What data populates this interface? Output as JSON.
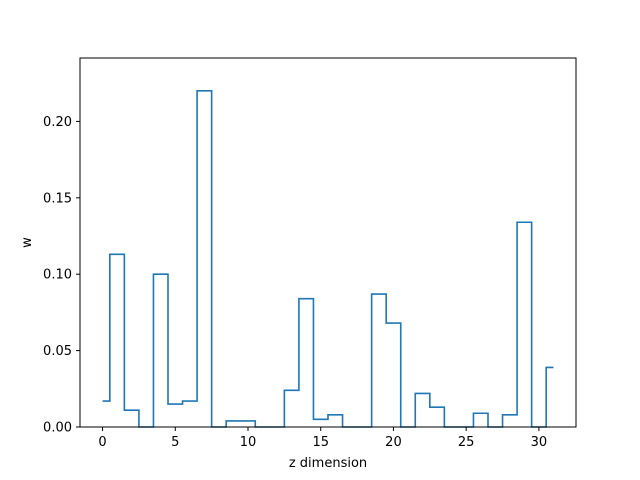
{
  "chart_data": {
    "type": "line",
    "style": "step",
    "title": "",
    "xlabel": "z dimension",
    "ylabel": "w",
    "xlim": [
      -1.55,
      32.55
    ],
    "ylim": [
      0,
      0.2415
    ],
    "xticks": [
      0,
      5,
      10,
      15,
      20,
      25,
      30
    ],
    "yticks": [
      0.0,
      0.05,
      0.1,
      0.15,
      0.2
    ],
    "ytick_labels": [
      "0.00",
      "0.05",
      "0.10",
      "0.15",
      "0.20"
    ],
    "grid": false,
    "line_color": "#1f77b4",
    "series": [
      {
        "x": [
          0,
          1,
          2,
          3,
          4,
          5,
          6,
          7,
          8,
          9,
          10,
          11,
          12,
          13,
          14,
          15,
          16,
          17,
          18,
          19,
          20,
          21,
          22,
          23,
          24,
          25,
          26,
          27,
          28,
          29,
          30,
          31
        ],
        "values": [
          0.017,
          0.113,
          0.011,
          0.0,
          0.1,
          0.015,
          0.017,
          0.22,
          0.0,
          0.004,
          0.004,
          0.0,
          0.0,
          0.024,
          0.084,
          0.005,
          0.008,
          0.0,
          0.0,
          0.087,
          0.068,
          0.0,
          0.022,
          0.013,
          0.0,
          0.0,
          0.009,
          0.0,
          0.008,
          0.134,
          0.0,
          0.039
        ]
      }
    ]
  }
}
